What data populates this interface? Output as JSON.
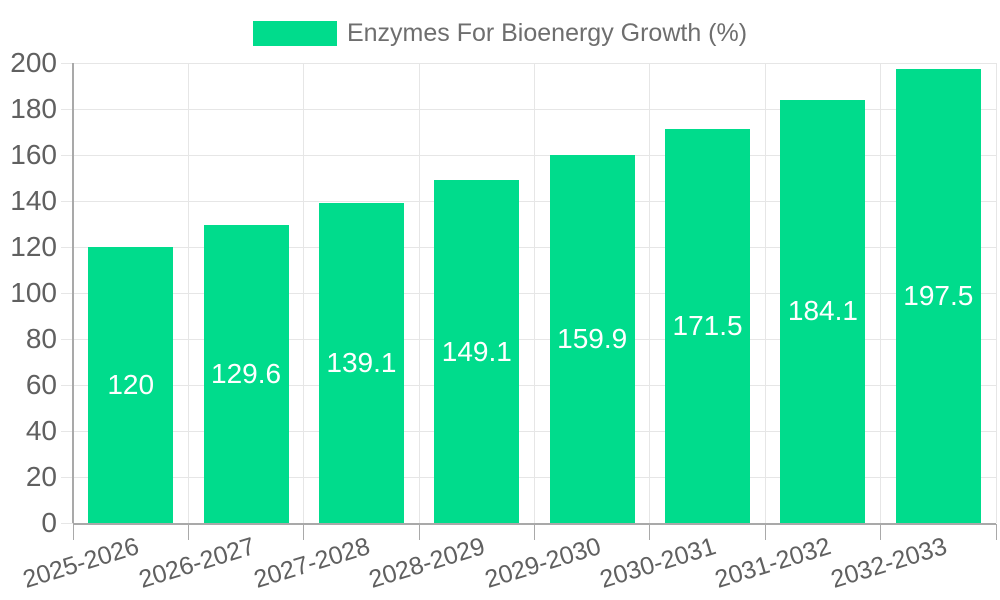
{
  "chart_data": {
    "type": "bar",
    "title": "",
    "legend": {
      "label": "Enzymes For Bioenergy Growth (%)",
      "position": "top"
    },
    "categories": [
      "2025-2026",
      "2026-2027",
      "2027-2028",
      "2028-2029",
      "2029-2030",
      "2030-2031",
      "2031-2032",
      "2032-2033"
    ],
    "series": [
      {
        "name": "Enzymes For Bioenergy Growth (%)",
        "values": [
          120,
          129.6,
          139.1,
          149.1,
          159.9,
          171.5,
          184.1,
          197.5
        ]
      }
    ],
    "bar_value_labels": [
      "120",
      "129.6",
      "139.1",
      "149.1",
      "159.9",
      "171.5",
      "184.1",
      "197.5"
    ],
    "xlabel": "",
    "ylabel": "",
    "ylim": [
      0,
      200
    ],
    "yticks": [
      0,
      20,
      40,
      60,
      80,
      100,
      120,
      140,
      160,
      180,
      200
    ],
    "grid": true,
    "x_label_rotation_deg": -17,
    "colors": {
      "bar": "#00DC8C",
      "value_text": "#FFFFFF",
      "axis_text": "#606060",
      "legend_text": "#6E6E6E",
      "grid": "#E6E6E6",
      "axis_line": "#A9A9A9",
      "background": "#FFFFFF"
    }
  }
}
